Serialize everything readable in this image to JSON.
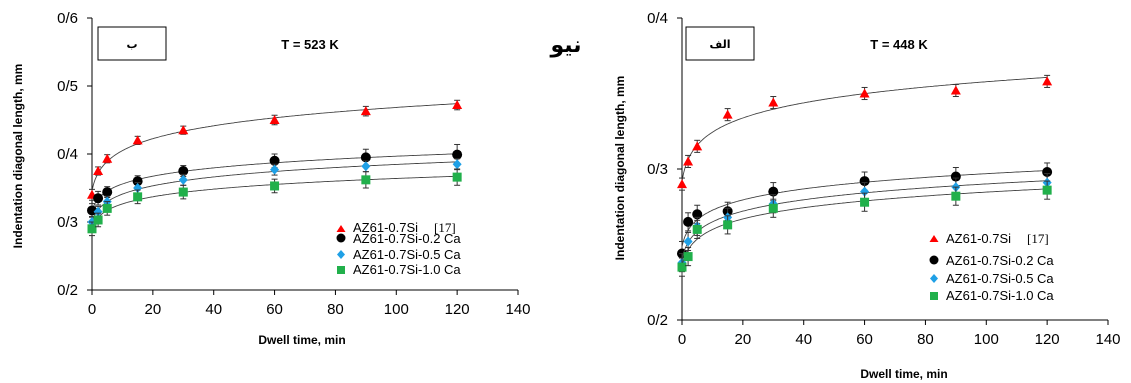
{
  "corner_text": "نیو",
  "chart_data": [
    {
      "type": "scatter",
      "panel_tag": "ب",
      "annotation": "T = 523 K",
      "xlabel": "Dwell time, min",
      "ylabel": "Indentation diagonal length, mm",
      "xlim": [
        0,
        140
      ],
      "ylim": [
        0.2,
        0.6
      ],
      "x_ticks": [
        "0",
        "20",
        "40",
        "60",
        "80",
        "100",
        "120",
        "140"
      ],
      "y_ticks": [
        "0/2",
        "0/3",
        "0/4",
        "0/5",
        "0/6"
      ],
      "grid": false,
      "legend_position": "lower-right",
      "series": [
        {
          "name": "AZ61-0.7Si",
          "ref": "[17]",
          "marker": "triangle",
          "color": "#ff0000",
          "x": [
            0,
            2,
            5,
            15,
            30,
            60,
            90,
            120
          ],
          "y": [
            0.34,
            0.375,
            0.393,
            0.42,
            0.435,
            0.45,
            0.463,
            0.472
          ],
          "err": [
            0.008,
            0.006,
            0.006,
            0.006,
            0.006,
            0.007,
            0.007,
            0.007
          ]
        },
        {
          "name": "AZ61-0.7Si-0.2 Ca",
          "marker": "circle",
          "color": "#000000",
          "x": [
            0,
            2,
            5,
            15,
            30,
            60,
            90,
            120
          ],
          "y": [
            0.317,
            0.335,
            0.344,
            0.36,
            0.375,
            0.39,
            0.395,
            0.399
          ],
          "err": [
            0.01,
            0.01,
            0.008,
            0.008,
            0.008,
            0.01,
            0.012,
            0.015
          ]
        },
        {
          "name": "AZ61-0.7Si-0.5 Ca",
          "marker": "diamond",
          "color": "#1fa0e6",
          "x": [
            0,
            2,
            5,
            15,
            30,
            60,
            90,
            120
          ],
          "y": [
            0.3,
            0.315,
            0.33,
            0.35,
            0.362,
            0.377,
            0.382,
            0.385
          ],
          "err": [
            0.008,
            0.008,
            0.008,
            0.008,
            0.008,
            0.008,
            0.008,
            0.008
          ]
        },
        {
          "name": "AZ61-0.7Si-1.0 Ca",
          "marker": "square",
          "color": "#21b04b",
          "x": [
            0,
            2,
            5,
            15,
            30,
            60,
            90,
            120
          ],
          "y": [
            0.29,
            0.303,
            0.32,
            0.337,
            0.344,
            0.353,
            0.362,
            0.366
          ],
          "err": [
            0.01,
            0.01,
            0.01,
            0.01,
            0.01,
            0.01,
            0.012,
            0.012
          ]
        }
      ]
    },
    {
      "type": "scatter",
      "panel_tag": "الف",
      "annotation": "T = 448 K",
      "xlabel": "Dwell time, min",
      "ylabel": "Indentation diagonal length, mm",
      "xlim": [
        0,
        140
      ],
      "ylim": [
        0.2,
        0.4
      ],
      "x_ticks": [
        "0",
        "20",
        "40",
        "60",
        "80",
        "100",
        "120",
        "140"
      ],
      "y_ticks": [
        "0/2",
        "0/3",
        "0/4"
      ],
      "grid": false,
      "legend_position": "lower-right",
      "series": [
        {
          "name": "AZ61-0.7Si",
          "ref": "[17]",
          "marker": "triangle",
          "color": "#ff0000",
          "x": [
            0,
            2,
            5,
            15,
            30,
            60,
            90,
            120
          ],
          "y": [
            0.29,
            0.305,
            0.315,
            0.336,
            0.344,
            0.35,
            0.352,
            0.358
          ],
          "err": [
            0.004,
            0.004,
            0.004,
            0.004,
            0.004,
            0.004,
            0.004,
            0.004
          ]
        },
        {
          "name": "AZ61-0.7Si-0.2 Ca",
          "marker": "circle",
          "color": "#000000",
          "x": [
            0,
            2,
            5,
            15,
            30,
            60,
            90,
            120
          ],
          "y": [
            0.244,
            0.265,
            0.27,
            0.272,
            0.285,
            0.292,
            0.295,
            0.298
          ],
          "err": [
            0.008,
            0.006,
            0.006,
            0.006,
            0.006,
            0.006,
            0.006,
            0.006
          ]
        },
        {
          "name": "AZ61-0.7Si-0.5 Ca",
          "marker": "diamond",
          "color": "#1fa0e6",
          "x": [
            0,
            2,
            5,
            15,
            30,
            60,
            90,
            120
          ],
          "y": [
            0.238,
            0.252,
            0.262,
            0.268,
            0.277,
            0.285,
            0.288,
            0.291
          ],
          "err": [
            0.006,
            0.006,
            0.006,
            0.006,
            0.006,
            0.006,
            0.006,
            0.006
          ]
        },
        {
          "name": "AZ61-0.7Si-1.0 Ca",
          "marker": "square",
          "color": "#21b04b",
          "x": [
            0,
            2,
            5,
            15,
            30,
            60,
            90,
            120
          ],
          "y": [
            0.235,
            0.242,
            0.26,
            0.263,
            0.274,
            0.278,
            0.282,
            0.286
          ],
          "err": [
            0.006,
            0.006,
            0.006,
            0.006,
            0.006,
            0.006,
            0.006,
            0.006
          ]
        }
      ]
    }
  ]
}
